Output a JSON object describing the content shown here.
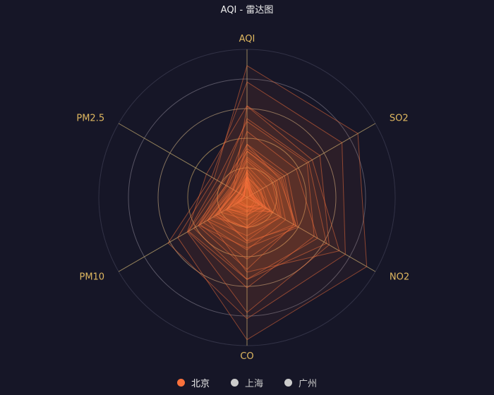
{
  "chart_data": {
    "type": "radar",
    "title": "AQI - 雷达图",
    "indicators": [
      {
        "name": "AQI",
        "max": 300
      },
      {
        "name": "SO2",
        "max": 250
      },
      {
        "name": "NO2",
        "max": 300
      },
      {
        "name": "CO",
        "max": 5
      },
      {
        "name": "PM10",
        "max": 200
      },
      {
        "name": "PM2.5",
        "max": 250
      }
    ],
    "legend": {
      "placement": "bottom",
      "items": [
        {
          "name": "北京",
          "color": "#F9713C",
          "active": true
        },
        {
          "name": "上海",
          "color": "#cccccc",
          "active": false
        },
        {
          "name": "广州",
          "color": "#cccccc",
          "active": false
        }
      ]
    },
    "series": [
      {
        "name": "北京",
        "color": "#F9713C",
        "values": [
          [
            55,
            9,
            56,
            0.46,
            18,
            6
          ],
          [
            25,
            11,
            21,
            0.65,
            34,
            9
          ],
          [
            56,
            7,
            63,
            0.3,
            14,
            5
          ],
          [
            33,
            7,
            29,
            0.33,
            16,
            6
          ],
          [
            42,
            24,
            44,
            0.76,
            40,
            16
          ],
          [
            82,
            58,
            90,
            1.77,
            68,
            33
          ],
          [
            74,
            49,
            77,
            1.46,
            48,
            27
          ],
          [
            78,
            55,
            80,
            1.29,
            59,
            29
          ],
          [
            267,
            216,
            280,
            4.8,
            108,
            64
          ],
          [
            185,
            127,
            216,
            2.52,
            61,
            27
          ],
          [
            39,
            19,
            38,
            0.57,
            31,
            15
          ],
          [
            41,
            11,
            40,
            0.43,
            21,
            7
          ],
          [
            64,
            38,
            74,
            1.04,
            46,
            22
          ],
          [
            108,
            79,
            120,
            1.7,
            75,
            41
          ],
          [
            108,
            63,
            116,
            1.48,
            44,
            26
          ],
          [
            33,
            6,
            29,
            0.34,
            13,
            5
          ],
          [
            94,
            66,
            110,
            1.54,
            62,
            31
          ],
          [
            186,
            142,
            192,
            3.88,
            93,
            79
          ],
          [
            57,
            31,
            54,
            0.96,
            32,
            14
          ],
          [
            22,
            8,
            17,
            0.48,
            23,
            10
          ],
          [
            39,
            15,
            36,
            0.61,
            29,
            13
          ],
          [
            94,
            69,
            114,
            2.08,
            73,
            39
          ],
          [
            99,
            73,
            110,
            2.43,
            76,
            48
          ],
          [
            31,
            12,
            30,
            0.5,
            32,
            16
          ],
          [
            42,
            27,
            43,
            1,
            53,
            22
          ],
          [
            154,
            117,
            157,
            3.05,
            92,
            58
          ],
          [
            234,
            185,
            230,
            4.09,
            123,
            69
          ],
          [
            160,
            120,
            186,
            2.77,
            91,
            50
          ],
          [
            134,
            96,
            165,
            2.76,
            83,
            41
          ],
          [
            52,
            24,
            60,
            1.03,
            50,
            21
          ],
          [
            46,
            5,
            49,
            0.28,
            10,
            6
          ]
        ]
      }
    ]
  }
}
